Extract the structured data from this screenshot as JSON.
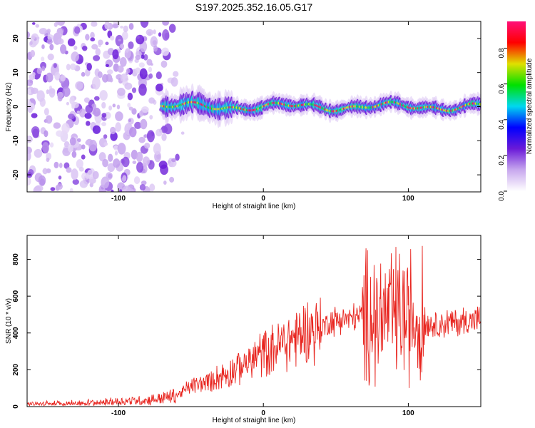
{
  "title": "S197.2025.352.16.05.G17",
  "chart_data": [
    {
      "type": "heatmap",
      "xlabel": "Height of straight line (km)",
      "ylabel": "Frequency (Hz)",
      "xlim": [
        -163,
        150
      ],
      "ylim": [
        -25,
        25
      ],
      "x_ticks": [
        -100,
        0,
        100
      ],
      "y_ticks": [
        -20,
        -10,
        0,
        10,
        20
      ],
      "colorbar": {
        "label": "Normalized spectral amplitude",
        "range": [
          0,
          0.95
        ],
        "ticks": [
          0.0,
          0.2,
          0.4,
          0.6,
          0.8
        ],
        "colors": [
          "#ffffff",
          "#c8a8ee",
          "#6a1ad8",
          "#0000ff",
          "#00d8f0",
          "#00e000",
          "#e0e000",
          "#ff0000",
          "#ff1078"
        ]
      },
      "ridge": {
        "description": "Narrow high-amplitude band near 0 Hz from about -60 km to 150 km; scattered low-amplitude noise below -60 km",
        "noise_x_range": [
          -163,
          -60
        ],
        "ridge_x_range": [
          -60,
          150
        ]
      }
    },
    {
      "type": "line",
      "xlabel": "Height of straight line (km)",
      "ylabel": "SNR (10 * v/v)",
      "xlim": [
        -163,
        150
      ],
      "ylim": [
        0,
        930
      ],
      "x_ticks": [
        -100,
        0,
        100
      ],
      "y_ticks": [
        0,
        200,
        400,
        600,
        800
      ],
      "series": [
        {
          "name": "SNR",
          "color": "#e8251f",
          "envelope_x": [
            -163,
            -120,
            -80,
            -60,
            -50,
            -40,
            -20,
            0,
            20,
            35,
            50,
            70,
            90,
            100,
            110,
            120,
            150
          ],
          "envelope_y": [
            12,
            20,
            35,
            60,
            110,
            130,
            200,
            290,
            370,
            420,
            470,
            490,
            500,
            480,
            460,
            450,
            470
          ]
        }
      ]
    }
  ]
}
